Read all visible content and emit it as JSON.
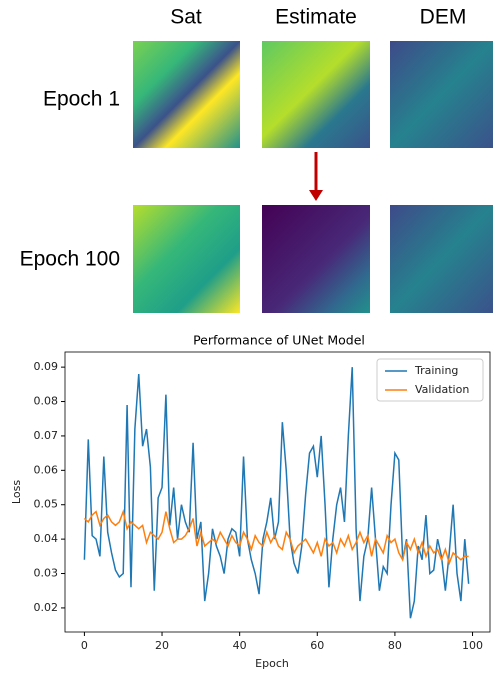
{
  "panel": {
    "columns": [
      "Sat",
      "Estimate",
      "DEM"
    ],
    "rows": [
      "Epoch 1",
      "Epoch 100"
    ]
  },
  "chart_data": {
    "type": "line",
    "title": "Performance of UNet Model",
    "x_label": "Epoch",
    "y_label": "Loss",
    "x": [
      0,
      1,
      2,
      3,
      4,
      5,
      6,
      7,
      8,
      9,
      10,
      11,
      12,
      13,
      14,
      15,
      16,
      17,
      18,
      19,
      20,
      21,
      22,
      23,
      24,
      25,
      26,
      27,
      28,
      29,
      30,
      31,
      32,
      33,
      34,
      35,
      36,
      37,
      38,
      39,
      40,
      41,
      42,
      43,
      44,
      45,
      46,
      47,
      48,
      49,
      50,
      51,
      52,
      53,
      54,
      55,
      56,
      57,
      58,
      59,
      60,
      61,
      62,
      63,
      64,
      65,
      66,
      67,
      68,
      69,
      70,
      71,
      72,
      73,
      74,
      75,
      76,
      77,
      78,
      79,
      80,
      81,
      82,
      83,
      84,
      85,
      86,
      87,
      88,
      89,
      90,
      91,
      92,
      93,
      94,
      95,
      96,
      97,
      98,
      99
    ],
    "series": [
      {
        "name": "Training",
        "color": "#1f77b4",
        "values": [
          0.034,
          0.069,
          0.041,
          0.04,
          0.035,
          0.064,
          0.042,
          0.036,
          0.031,
          0.029,
          0.03,
          0.079,
          0.026,
          0.072,
          0.088,
          0.067,
          0.072,
          0.061,
          0.025,
          0.052,
          0.055,
          0.082,
          0.044,
          0.055,
          0.04,
          0.05,
          0.045,
          0.042,
          0.068,
          0.04,
          0.045,
          0.022,
          0.03,
          0.043,
          0.038,
          0.035,
          0.03,
          0.04,
          0.043,
          0.042,
          0.035,
          0.064,
          0.04,
          0.034,
          0.03,
          0.024,
          0.04,
          0.045,
          0.052,
          0.04,
          0.045,
          0.074,
          0.06,
          0.04,
          0.033,
          0.03,
          0.038,
          0.053,
          0.065,
          0.067,
          0.058,
          0.07,
          0.05,
          0.026,
          0.04,
          0.05,
          0.055,
          0.045,
          0.07,
          0.09,
          0.043,
          0.022,
          0.035,
          0.04,
          0.055,
          0.04,
          0.025,
          0.032,
          0.03,
          0.05,
          0.065,
          0.063,
          0.034,
          0.04,
          0.017,
          0.022,
          0.038,
          0.034,
          0.047,
          0.03,
          0.031,
          0.04,
          0.035,
          0.025,
          0.036,
          0.05,
          0.03,
          0.022,
          0.04,
          0.027
        ]
      },
      {
        "name": "Validation",
        "color": "#ff7f0e",
        "values": [
          0.046,
          0.045,
          0.047,
          0.048,
          0.044,
          0.046,
          0.047,
          0.045,
          0.044,
          0.045,
          0.048,
          0.043,
          0.045,
          0.044,
          0.043,
          0.044,
          0.039,
          0.042,
          0.041,
          0.04,
          0.042,
          0.048,
          0.043,
          0.039,
          0.04,
          0.04,
          0.041,
          0.043,
          0.046,
          0.038,
          0.042,
          0.038,
          0.039,
          0.04,
          0.039,
          0.042,
          0.04,
          0.038,
          0.041,
          0.039,
          0.038,
          0.042,
          0.04,
          0.037,
          0.041,
          0.039,
          0.038,
          0.042,
          0.039,
          0.041,
          0.038,
          0.037,
          0.042,
          0.04,
          0.036,
          0.038,
          0.039,
          0.04,
          0.038,
          0.036,
          0.039,
          0.035,
          0.04,
          0.038,
          0.039,
          0.036,
          0.04,
          0.038,
          0.041,
          0.037,
          0.039,
          0.042,
          0.039,
          0.041,
          0.035,
          0.04,
          0.038,
          0.036,
          0.041,
          0.039,
          0.04,
          0.036,
          0.034,
          0.039,
          0.037,
          0.04,
          0.036,
          0.039,
          0.035,
          0.038,
          0.036,
          0.037,
          0.034,
          0.037,
          0.033,
          0.036,
          0.035,
          0.034,
          0.035,
          0.035
        ]
      }
    ],
    "xlim": [
      -5,
      104.5
    ],
    "ylim": [
      0.013,
      0.0944
    ],
    "xticks": [
      0,
      20,
      40,
      60,
      80,
      100
    ],
    "yticks": [
      0.02,
      0.03,
      0.04,
      0.05,
      0.06,
      0.07,
      0.08,
      0.09
    ],
    "legend": "upper right"
  }
}
